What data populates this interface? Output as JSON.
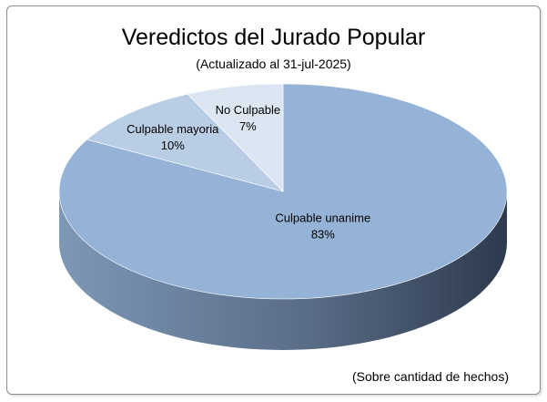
{
  "chart_data": {
    "type": "pie",
    "title": "Veredictos del Jurado Popular",
    "subtitle": "(Actualizado al 31-jul-2025)",
    "note": "(Sobre cantidad de hechos)",
    "three_d": true,
    "legend": "none",
    "slices": [
      {
        "label": "Culpable unanime",
        "value": 83,
        "value_label": "83%",
        "color": "#95b3d7"
      },
      {
        "label": "Culpable mayoria",
        "value": 10,
        "value_label": "10%",
        "color": "#b9cde5"
      },
      {
        "label": "No Culpable",
        "value": 7,
        "value_label": "7%",
        "color": "#dce6f2"
      }
    ]
  }
}
